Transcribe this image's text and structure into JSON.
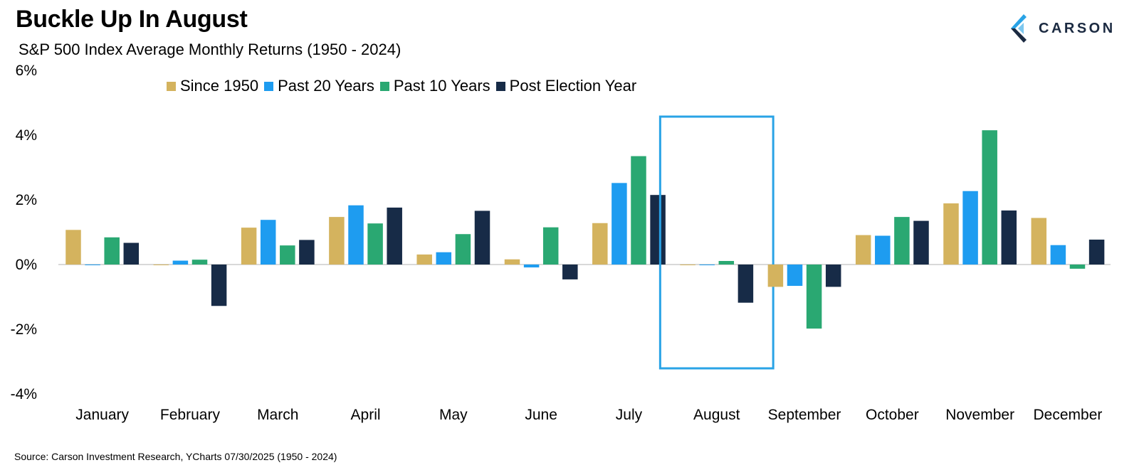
{
  "header": {
    "title": "Buckle Up In August",
    "subtitle": "S&P 500 Index Average Monthly Returns (1950 - 2024)"
  },
  "logo": {
    "text": "CARSON",
    "icon": "carson-chevron-logo"
  },
  "source": "Source: Carson Investment Research, YCharts 07/30/2025 (1950 - 2024)",
  "colors": {
    "since1950": "#d4b35e",
    "past20": "#1e9cf0",
    "past10": "#2aa872",
    "postElection": "#172b47",
    "highlight": "#29a3e6"
  },
  "chart_data": {
    "type": "bar",
    "categories": [
      "January",
      "February",
      "March",
      "April",
      "May",
      "June",
      "July",
      "August",
      "September",
      "October",
      "November",
      "December"
    ],
    "series": [
      {
        "name": "Since 1950",
        "color": "#d4b35e",
        "values": [
          1.07,
          -0.01,
          1.14,
          1.47,
          0.31,
          0.16,
          1.28,
          0.0,
          -0.69,
          0.91,
          1.89,
          1.44
        ]
      },
      {
        "name": "Past 20 Years",
        "color": "#1e9cf0",
        "values": [
          -0.01,
          0.12,
          1.38,
          1.83,
          0.38,
          -0.09,
          2.52,
          -0.01,
          -0.66,
          0.89,
          2.27,
          0.6
        ]
      },
      {
        "name": "Past 10 Years",
        "color": "#2aa872",
        "values": [
          0.84,
          0.15,
          0.59,
          1.27,
          0.94,
          1.15,
          3.35,
          0.11,
          -1.98,
          1.47,
          4.15,
          -0.13
        ]
      },
      {
        "name": "Post Election Year",
        "color": "#172b47",
        "values": [
          0.67,
          -1.28,
          0.76,
          1.76,
          1.66,
          -0.46,
          2.15,
          -1.18,
          -0.69,
          1.35,
          1.67,
          0.77
        ]
      }
    ],
    "yticks": [
      "6%",
      "4%",
      "2%",
      "0%",
      "-2%",
      "-4%"
    ],
    "ytick_values": [
      6,
      4,
      2,
      0,
      -2,
      -4
    ],
    "ylim": [
      -4,
      6
    ],
    "grid": false,
    "legend_position": "top",
    "highlight_category": "August"
  }
}
